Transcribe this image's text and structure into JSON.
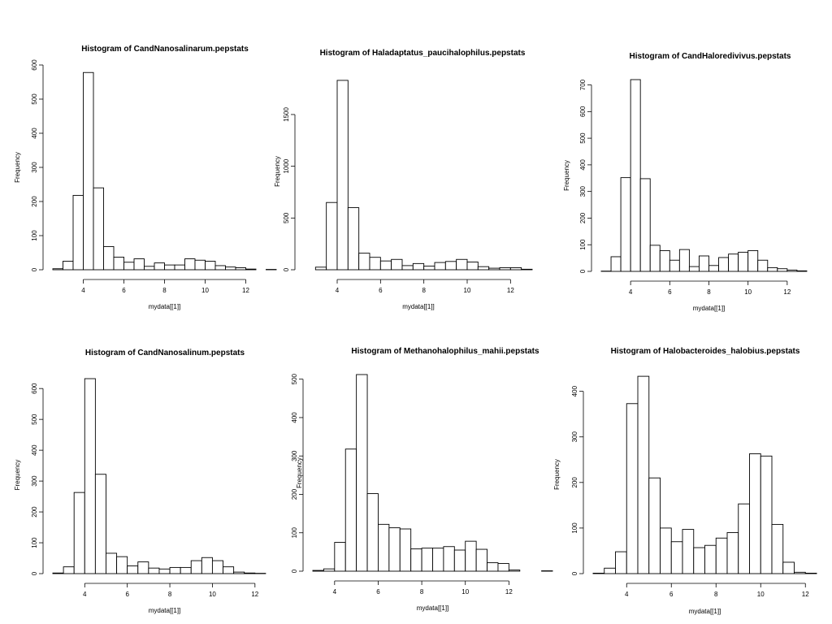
{
  "chart_data": [
    {
      "type": "bar",
      "title": "Histogram of  CandNanosalinarum.pepstats",
      "xlabel": "mydata[[1]]",
      "ylabel": "Frequency",
      "bin_width": 0.5,
      "bin_start": 2.5,
      "values": [
        3,
        25,
        218,
        578,
        240,
        68,
        37,
        22,
        32,
        10,
        20,
        14,
        14,
        32,
        28,
        25,
        12,
        8,
        6,
        2,
        0,
        1
      ],
      "xticks": [
        4,
        6,
        8,
        10,
        12
      ],
      "yticks": [
        0,
        100,
        200,
        300,
        400,
        500,
        600
      ],
      "ylim": [
        0,
        600
      ],
      "xlim": [
        2.5,
        13.5
      ]
    },
    {
      "type": "bar",
      "title": "Histogram of  Haladaptatus_paucihalophilus.pepstats",
      "xlabel": "mydata[[1]]",
      "ylabel": "Frequency",
      "bin_width": 0.5,
      "bin_start": 3.0,
      "values": [
        25,
        650,
        1830,
        600,
        160,
        120,
        85,
        100,
        40,
        60,
        35,
        70,
        80,
        100,
        75,
        30,
        15,
        20,
        20,
        5
      ],
      "xticks": [
        4,
        6,
        8,
        10,
        12
      ],
      "yticks": [
        0,
        500,
        1000,
        1500
      ],
      "ylim": [
        0,
        1900
      ],
      "xlim": [
        2.5,
        13.0
      ]
    },
    {
      "type": "bar",
      "title": "Histogram of  CandHaloredivivus.pepstats",
      "xlabel": "mydata[[1]]",
      "ylabel": "Frequency",
      "bin_width": 0.5,
      "bin_start": 2.5,
      "values": [
        1,
        55,
        352,
        720,
        348,
        98,
        78,
        42,
        82,
        18,
        58,
        22,
        52,
        65,
        72,
        78,
        42,
        14,
        10,
        5,
        2
      ],
      "xticks": [
        4,
        6,
        8,
        10,
        12
      ],
      "yticks": [
        0,
        100,
        200,
        300,
        400,
        500,
        600,
        700
      ],
      "ylim": [
        0,
        720
      ],
      "xlim": [
        2.5,
        13.5
      ]
    },
    {
      "type": "bar",
      "title": "Histogram of  CandNanosalinum.pepstats",
      "xlabel": "mydata[[1]]",
      "ylabel": "Frequency",
      "bin_width": 0.5,
      "bin_start": 2.5,
      "values": [
        2,
        22,
        263,
        632,
        322,
        66,
        55,
        25,
        38,
        18,
        15,
        20,
        20,
        42,
        52,
        42,
        22,
        5,
        2,
        1,
        0
      ],
      "xticks": [
        4,
        6,
        8,
        10,
        12
      ],
      "yticks": [
        0,
        100,
        200,
        300,
        400,
        500,
        600
      ],
      "ylim": [
        0,
        640
      ],
      "xlim": [
        2.5,
        13.0
      ]
    },
    {
      "type": "bar",
      "title": "Histogram of  Methanohalophilus_mahii.pepstats",
      "xlabel": "mydata[[1]]",
      "ylabel": "Frequency",
      "bin_width": 0.5,
      "bin_start": 3.0,
      "values": [
        2,
        6,
        75,
        318,
        512,
        202,
        122,
        113,
        110,
        58,
        60,
        60,
        64,
        55,
        78,
        57,
        22,
        20,
        3,
        0,
        0,
        1
      ],
      "xticks": [
        4,
        6,
        8,
        10,
        12
      ],
      "yticks": [
        0,
        100,
        200,
        300,
        400,
        500
      ],
      "ylim": [
        0,
        512
      ],
      "xlim": [
        3.0,
        14.0
      ]
    },
    {
      "type": "bar",
      "title": "Histogram of  Halobacteroides_halobius.pepstats",
      "xlabel": "mydata[[1]]",
      "ylabel": "Frequency",
      "bin_width": 0.5,
      "bin_start": 2.5,
      "values": [
        1,
        12,
        48,
        373,
        433,
        210,
        100,
        70,
        97,
        57,
        62,
        78,
        90,
        153,
        263,
        258,
        108,
        25,
        3,
        1
      ],
      "xticks": [
        4,
        6,
        8,
        10,
        12
      ],
      "yticks": [
        0,
        100,
        200,
        300,
        400
      ],
      "ylim": [
        0,
        435
      ],
      "xlim": [
        2.5,
        12.5
      ]
    }
  ]
}
